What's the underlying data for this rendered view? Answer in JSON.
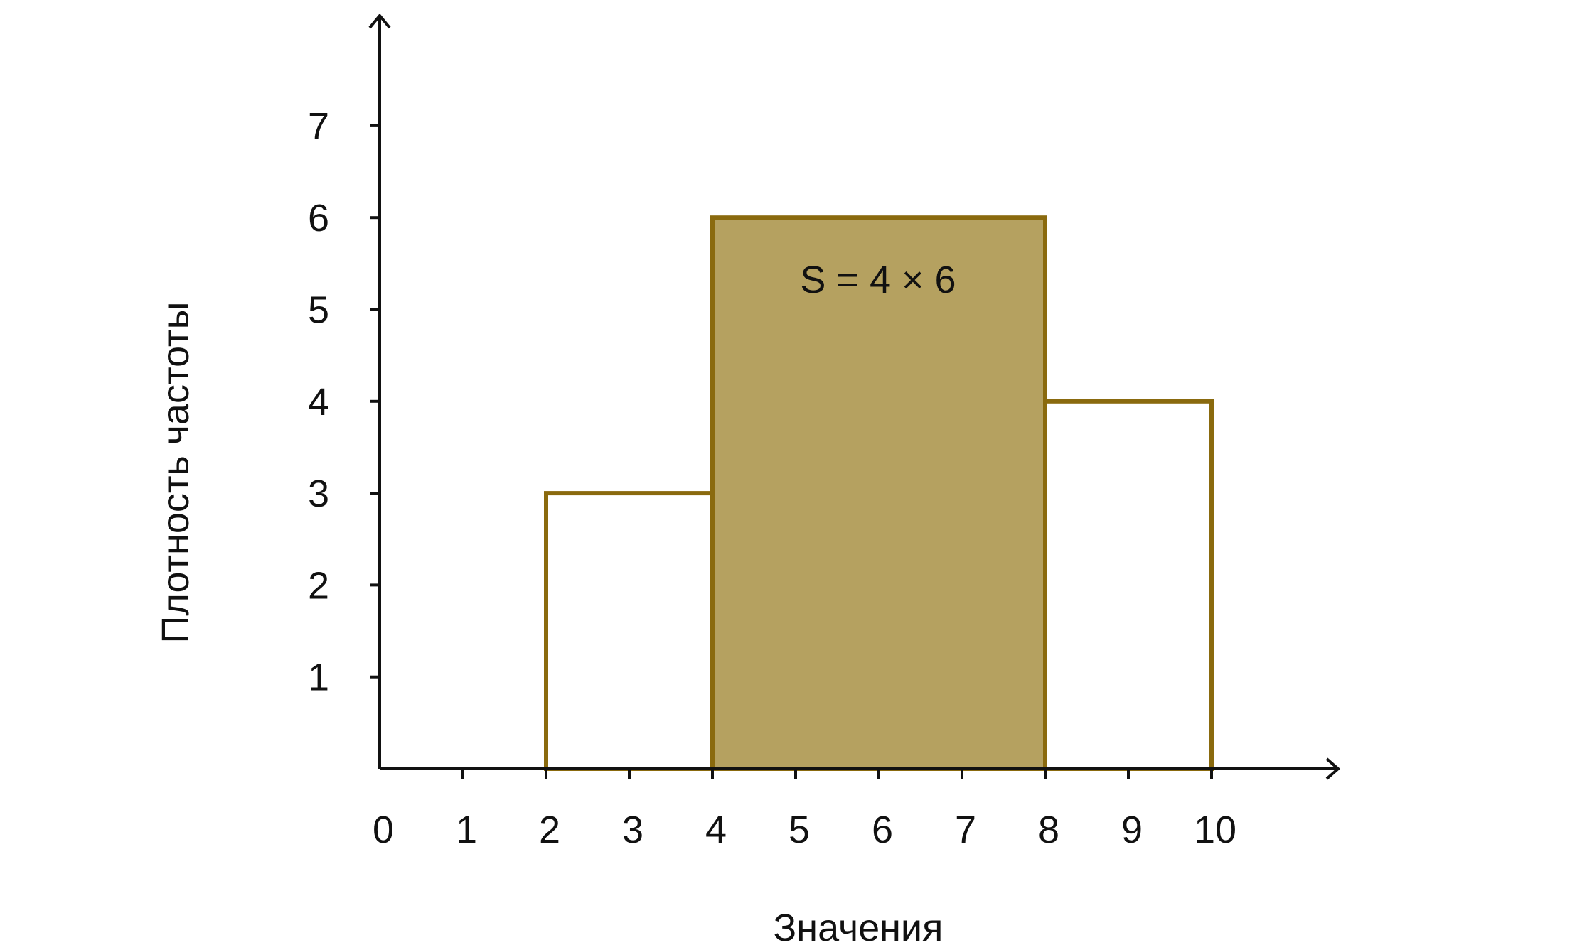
{
  "chart_data": {
    "type": "bar",
    "title": "",
    "xlabel": "Значения",
    "ylabel": "Плотность частоты",
    "xlim": [
      0,
      10
    ],
    "ylim": [
      0,
      7
    ],
    "x_ticks": [
      0,
      1,
      2,
      3,
      4,
      5,
      6,
      7,
      8,
      9,
      10
    ],
    "y_ticks": [
      1,
      2,
      3,
      4,
      5,
      6,
      7
    ],
    "bins": [
      {
        "x_start": 2,
        "x_end": 4,
        "value": 3,
        "highlighted": false
      },
      {
        "x_start": 4,
        "x_end": 8,
        "value": 6,
        "highlighted": true
      },
      {
        "x_start": 8,
        "x_end": 10,
        "value": 4,
        "highlighted": false
      }
    ],
    "annotation": {
      "text": "S = 4 × 6",
      "bin_index": 1
    },
    "grid": false,
    "legend": "none",
    "colors": {
      "bar_outline": "#8A6A0E",
      "highlight_fill": "#B5A160",
      "axis": "#111111"
    }
  }
}
